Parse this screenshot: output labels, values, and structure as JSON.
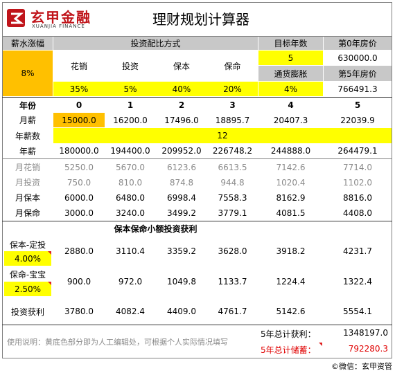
{
  "header": {
    "logo_cn": "玄甲金融",
    "logo_en": "XUANJIA FINANCE",
    "title": "理财规划计算器"
  },
  "top": {
    "salary_growth_label": "薪水涨幅",
    "salary_growth_value": "8%",
    "alloc_label": "投资配比方式",
    "alloc": [
      {
        "label": "花销",
        "value": "35%"
      },
      {
        "label": "投资",
        "value": "5%"
      },
      {
        "label": "保本",
        "value": "40%"
      },
      {
        "label": "保命",
        "value": "20%"
      }
    ],
    "target_years_label": "目标年数",
    "target_years_value": "5",
    "inflation_label": "通货膨胀",
    "inflation_value": "4%",
    "price_y0_label": "第0年房价",
    "price_y0_value": "630000.0",
    "price_y5_label": "第5年房价",
    "price_y5_value": "766491.3"
  },
  "table": {
    "year_label": "年份",
    "years": [
      "0",
      "1",
      "2",
      "3",
      "4",
      "5"
    ],
    "monthly_label": "月薪",
    "monthly": [
      "15000.0",
      "16200.0",
      "17496.0",
      "18895.7",
      "20407.3",
      "22039.9"
    ],
    "months_label": "年薪数",
    "months_value": "12",
    "annual_label": "年薪",
    "annual": [
      "180000.0",
      "194400.0",
      "209952.0",
      "226748.2",
      "244888.0",
      "264479.1"
    ],
    "m_spend_label": "月花销",
    "m_spend": [
      "5250.0",
      "5670.0",
      "6123.6",
      "6613.5",
      "7142.6",
      "7714.0"
    ],
    "m_invest_label": "月投资",
    "m_invest": [
      "750.0",
      "810.0",
      "874.8",
      "944.8",
      "1020.4",
      "1102.0"
    ],
    "m_safe_label": "月保本",
    "m_safe": [
      "6000.0",
      "6480.0",
      "6998.4",
      "7558.3",
      "8162.9",
      "8816.0"
    ],
    "m_life_label": "月保命",
    "m_life": [
      "3000.0",
      "3240.0",
      "3499.2",
      "3779.1",
      "4081.5",
      "4408.0"
    ]
  },
  "profit": {
    "title": "保本保命小额投资获利",
    "safe_label": "保本-定投",
    "safe_rate": "4.00%",
    "safe_values": [
      "2880.0",
      "3110.4",
      "3359.2",
      "3628.0",
      "3918.2",
      "4231.7"
    ],
    "life_label": "保命-宝宝",
    "life_rate": "2.50%",
    "life_values": [
      "900.0",
      "972.0",
      "1049.8",
      "1133.7",
      "1224.4",
      "1322.4"
    ],
    "total_label": "投资获利",
    "total_values": [
      "3780.0",
      "4082.4",
      "4409.0",
      "4761.7",
      "5142.6",
      "5554.1"
    ]
  },
  "footer": {
    "note": "使用说明：黄底色部分即为人工编辑处，可根据个人实际情况填写",
    "total_profit_label": "5年总计获利：",
    "total_profit_value": "1348197.0",
    "total_savings_label": "5年总计储蓄：",
    "total_savings_value": "792280.3",
    "credit": "©微信：玄甲资管"
  },
  "colors": {
    "yellow": "#ffff00",
    "orange": "#ffc000",
    "header_gray": "#c8c8c8",
    "red": "#e00000"
  }
}
